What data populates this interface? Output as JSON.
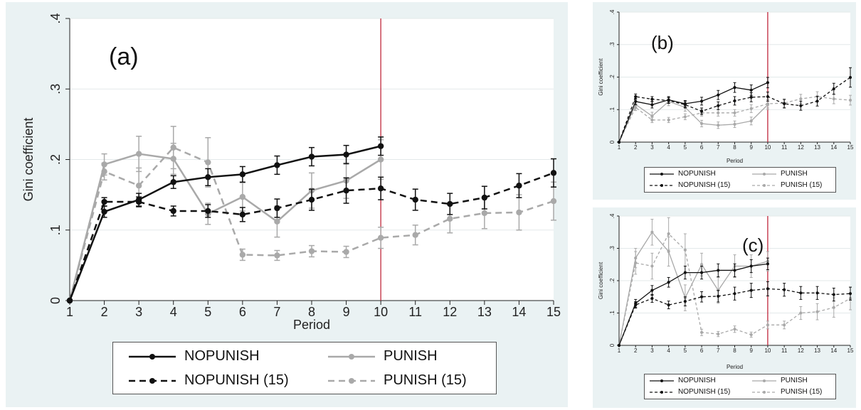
{
  "legend_labels": [
    "NOPUNISH",
    "PUNISH",
    "NOPUNISH (15)",
    "PUNISH (15)"
  ],
  "colors": {
    "panel_bg": "#eaf2f3",
    "plot_bg": "#ffffff",
    "black_series": "#111111",
    "gray_series": "#a9a9a9",
    "ref_line": "#c0283c",
    "grid": "#e3e9ea"
  },
  "chart_data": [
    {
      "panel_label": "(a)",
      "type": "line",
      "xlabel": "Period",
      "ylabel": "Gini coefficient",
      "xticks": [
        "1",
        "2",
        "3",
        "4",
        "5",
        "6",
        "7",
        "8",
        "9",
        "10",
        "11",
        "12",
        "13",
        "14",
        "15"
      ],
      "yticks": [
        "0",
        ".1",
        ".2",
        ".3",
        ".4"
      ],
      "xlim": [
        1,
        15
      ],
      "ylim": [
        0,
        0.4
      ],
      "reference_line_x": 10,
      "grid": true,
      "legend_position": "bottom",
      "series": [
        {
          "name": "NOPUNISH",
          "color": "#111111",
          "dashed": false,
          "x": [
            1,
            2,
            3,
            4,
            5,
            6,
            7,
            8,
            9,
            10
          ],
          "y": [
            0,
            0.126,
            0.143,
            0.168,
            0.175,
            0.179,
            0.192,
            0.204,
            0.207,
            0.219
          ],
          "err": [
            0,
            0.008,
            0.009,
            0.009,
            0.012,
            0.011,
            0.013,
            0.013,
            0.013,
            0.013
          ]
        },
        {
          "name": "PUNISH",
          "color": "#a9a9a9",
          "dashed": false,
          "x": [
            1,
            2,
            3,
            4,
            5,
            6,
            7,
            8,
            9,
            10
          ],
          "y": [
            0,
            0.193,
            0.208,
            0.201,
            0.123,
            0.147,
            0.112,
            0.156,
            0.17,
            0.2
          ],
          "err": [
            0,
            0.015,
            0.025,
            0.022,
            0.015,
            0.02,
            0.022,
            0.025,
            0.025,
            0.028
          ]
        },
        {
          "name": "NOPUNISH (15)",
          "color": "#111111",
          "dashed": true,
          "x": [
            1,
            2,
            3,
            4,
            5,
            6,
            7,
            8,
            9,
            10,
            11,
            12,
            13,
            14,
            15
          ],
          "y": [
            0,
            0.14,
            0.14,
            0.127,
            0.127,
            0.122,
            0.131,
            0.143,
            0.156,
            0.159,
            0.143,
            0.137,
            0.146,
            0.163,
            0.181
          ],
          "err": [
            0,
            0.006,
            0.007,
            0.007,
            0.009,
            0.01,
            0.013,
            0.015,
            0.018,
            0.016,
            0.015,
            0.015,
            0.016,
            0.017,
            0.02
          ]
        },
        {
          "name": "PUNISH (15)",
          "color": "#a9a9a9",
          "dashed": true,
          "x": [
            1,
            2,
            3,
            4,
            5,
            6,
            7,
            8,
            9,
            10,
            11,
            12,
            13,
            14,
            15
          ],
          "y": [
            0,
            0.183,
            0.163,
            0.217,
            0.196,
            0.065,
            0.064,
            0.07,
            0.069,
            0.089,
            0.093,
            0.116,
            0.124,
            0.125,
            0.141
          ],
          "err": [
            0,
            0.012,
            0.025,
            0.03,
            0.035,
            0.008,
            0.007,
            0.008,
            0.008,
            0.015,
            0.014,
            0.02,
            0.022,
            0.025,
            0.027
          ]
        }
      ]
    },
    {
      "panel_label": "(b)",
      "type": "line",
      "xlabel": "Period",
      "ylabel": "Gini coefficient",
      "xticks": [
        "1",
        "2",
        "3",
        "4",
        "5",
        "6",
        "7",
        "8",
        "9",
        "10",
        "11",
        "12",
        "13",
        "14",
        "15"
      ],
      "yticks": [
        "0",
        ".1",
        ".2",
        ".3",
        ".4"
      ],
      "xlim": [
        1,
        15
      ],
      "ylim": [
        0,
        0.4
      ],
      "reference_line_x": 10,
      "grid": true,
      "legend_position": "bottom",
      "series": [
        {
          "name": "NOPUNISH",
          "color": "#111111",
          "dashed": false,
          "x": [
            1,
            2,
            3,
            4,
            5,
            6,
            7,
            8,
            9,
            10
          ],
          "y": [
            0,
            0.125,
            0.115,
            0.13,
            0.118,
            0.126,
            0.145,
            0.168,
            0.16,
            0.183
          ],
          "err": [
            0,
            0.01,
            0.01,
            0.01,
            0.01,
            0.012,
            0.014,
            0.015,
            0.016,
            0.016
          ]
        },
        {
          "name": "PUNISH",
          "color": "#a9a9a9",
          "dashed": false,
          "x": [
            1,
            2,
            3,
            4,
            5,
            6,
            7,
            8,
            9,
            10
          ],
          "y": [
            0,
            0.116,
            0.08,
            0.125,
            0.107,
            0.057,
            0.052,
            0.055,
            0.065,
            0.115
          ],
          "err": [
            0,
            0.012,
            0.012,
            0.013,
            0.012,
            0.01,
            0.01,
            0.01,
            0.012,
            0.015
          ]
        },
        {
          "name": "NOPUNISH (15)",
          "color": "#111111",
          "dashed": true,
          "x": [
            1,
            2,
            3,
            4,
            5,
            6,
            7,
            8,
            9,
            10,
            11,
            12,
            13,
            14,
            15
          ],
          "y": [
            0,
            0.14,
            0.132,
            0.128,
            0.115,
            0.095,
            0.112,
            0.127,
            0.138,
            0.14,
            0.118,
            0.112,
            0.126,
            0.164,
            0.199
          ],
          "err": [
            0,
            0.008,
            0.008,
            0.009,
            0.01,
            0.01,
            0.012,
            0.013,
            0.014,
            0.014,
            0.013,
            0.014,
            0.015,
            0.017,
            0.03
          ]
        },
        {
          "name": "PUNISH (15)",
          "color": "#a9a9a9",
          "dashed": true,
          "x": [
            1,
            2,
            3,
            4,
            5,
            6,
            7,
            8,
            9,
            10,
            11,
            12,
            13,
            14,
            15
          ],
          "y": [
            0,
            0.107,
            0.068,
            0.068,
            0.078,
            0.09,
            0.09,
            0.09,
            0.103,
            0.118,
            0.12,
            0.133,
            0.14,
            0.133,
            0.129
          ],
          "err": [
            0,
            0.01,
            0.008,
            0.008,
            0.009,
            0.01,
            0.01,
            0.01,
            0.012,
            0.013,
            0.013,
            0.014,
            0.015,
            0.015,
            0.015
          ]
        }
      ]
    },
    {
      "panel_label": "(c)",
      "type": "line",
      "xlabel": "Period",
      "ylabel": "Gini coefficient",
      "xticks": [
        "1",
        "2",
        "3",
        "4",
        "5",
        "6",
        "7",
        "8",
        "9",
        "10",
        "11",
        "12",
        "13",
        "14",
        "15"
      ],
      "yticks": [
        "0",
        ".1",
        ".2",
        ".3",
        ".4"
      ],
      "xlim": [
        1,
        15
      ],
      "ylim": [
        0,
        0.4
      ],
      "reference_line_x": 10,
      "grid": true,
      "legend_position": "bottom",
      "series": [
        {
          "name": "NOPUNISH",
          "color": "#111111",
          "dashed": false,
          "x": [
            1,
            2,
            3,
            4,
            5,
            6,
            7,
            8,
            9,
            10
          ],
          "y": [
            0,
            0.13,
            0.17,
            0.195,
            0.225,
            0.225,
            0.232,
            0.232,
            0.245,
            0.252
          ],
          "err": [
            0,
            0.012,
            0.015,
            0.015,
            0.02,
            0.02,
            0.02,
            0.02,
            0.02,
            0.018
          ]
        },
        {
          "name": "PUNISH",
          "color": "#a9a9a9",
          "dashed": false,
          "x": [
            1,
            2,
            3,
            4,
            5,
            6,
            7,
            8,
            9,
            10
          ],
          "y": [
            0,
            0.27,
            0.35,
            0.29,
            0.147,
            0.25,
            0.17,
            0.245,
            0.245,
            0.26
          ],
          "err": [
            0,
            0.03,
            0.04,
            0.045,
            0.04,
            0.035,
            0.04,
            0.035,
            0.035,
            0.03
          ]
        },
        {
          "name": "NOPUNISH (15)",
          "color": "#111111",
          "dashed": true,
          "x": [
            1,
            2,
            3,
            4,
            5,
            6,
            7,
            8,
            9,
            10,
            11,
            12,
            13,
            14,
            15
          ],
          "y": [
            0,
            0.125,
            0.145,
            0.125,
            0.136,
            0.15,
            0.152,
            0.16,
            0.17,
            0.175,
            0.172,
            0.162,
            0.162,
            0.157,
            0.16
          ],
          "err": [
            0,
            0.01,
            0.012,
            0.012,
            0.014,
            0.016,
            0.018,
            0.02,
            0.022,
            0.022,
            0.02,
            0.02,
            0.02,
            0.02,
            0.02
          ]
        },
        {
          "name": "PUNISH (15)",
          "color": "#a9a9a9",
          "dashed": true,
          "x": [
            1,
            2,
            3,
            4,
            5,
            6,
            7,
            8,
            9,
            10,
            11,
            12,
            13,
            14,
            15
          ],
          "y": [
            0,
            0.255,
            0.245,
            0.345,
            0.295,
            0.04,
            0.035,
            0.05,
            0.033,
            0.063,
            0.063,
            0.1,
            0.104,
            0.117,
            0.145
          ],
          "err": [
            0,
            0.035,
            0.04,
            0.05,
            0.05,
            0.01,
            0.008,
            0.01,
            0.008,
            0.012,
            0.012,
            0.02,
            0.025,
            0.03,
            0.035
          ]
        }
      ]
    }
  ]
}
